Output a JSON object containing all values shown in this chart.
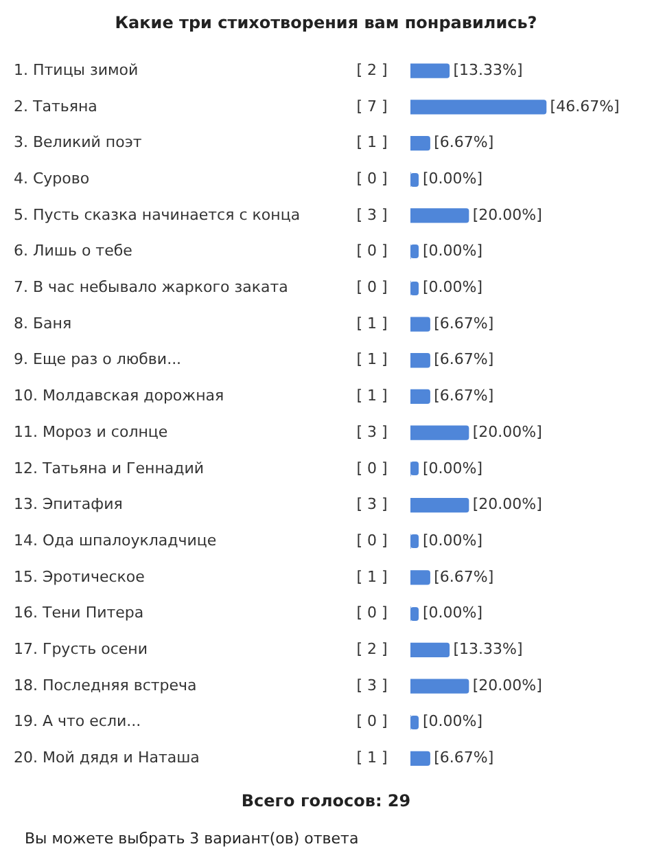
{
  "chart_data": {
    "type": "bar",
    "orientation": "horizontal",
    "title": "Какие три стихотворения вам понравились?",
    "categories": [
      "1. Птицы зимой",
      "2. Татьяна",
      "3. Великий поэт",
      "4. Сурово",
      "5. Пусть сказка начинается с конца",
      "6. Лишь о тебе",
      "7. В час небывало жаркого заката",
      "8. Баня",
      "9. Еще раз о любви...",
      "10. Молдавская дорожная",
      "11. Мороз и солнце",
      "12. Татьяна и Геннадий",
      "13. Эпитафия",
      "14. Ода шпалоукладчице",
      "15. Эротическое",
      "16. Тени Питера",
      "17. Грусть осени",
      "18. Последняя встреча",
      "19. А что если...",
      "20. Мой дядя и Наташа"
    ],
    "values": [
      13.33,
      46.67,
      6.67,
      0,
      20,
      0,
      0,
      6.67,
      6.67,
      6.67,
      20,
      0,
      20,
      0,
      6.67,
      0,
      13.33,
      20,
      0,
      6.67
    ],
    "value_labels": [
      "[13.33%]",
      "[46.67%]",
      "[6.67%]",
      "[0.00%]",
      "[20.00%]",
      "[0.00%]",
      "[0.00%]",
      "[6.67%]",
      "[6.67%]",
      "[6.67%]",
      "[20.00%]",
      "[0.00%]",
      "[20.00%]",
      "[0.00%]",
      "[6.67%]",
      "[0.00%]",
      "[13.33%]",
      "[20.00%]",
      "[0.00%]",
      "[6.67%]"
    ],
    "color": "#4f86d9",
    "tick_labels": "y",
    "grid": false,
    "legend": false,
    "annotations": [
      "[ 2 ]",
      "[ 7 ]",
      "[ 1 ]",
      "[ 0 ]",
      "[ 3 ]",
      "[ 0 ]",
      "[ 0 ]",
      "[ 1 ]",
      "[ 1 ]",
      "[ 1 ]",
      "[ 3 ]",
      "[ 0 ]",
      "[ 3 ]",
      "[ 0 ]",
      "[ 1 ]",
      "[ 0 ]",
      "[ 2 ]",
      "[ 3 ]",
      "[ 0 ]",
      "[ 1 ]",
      "Всего голосов: 29",
      "Вы можете выбрать 3 вариант(ов) ответа"
    ]
  }
}
